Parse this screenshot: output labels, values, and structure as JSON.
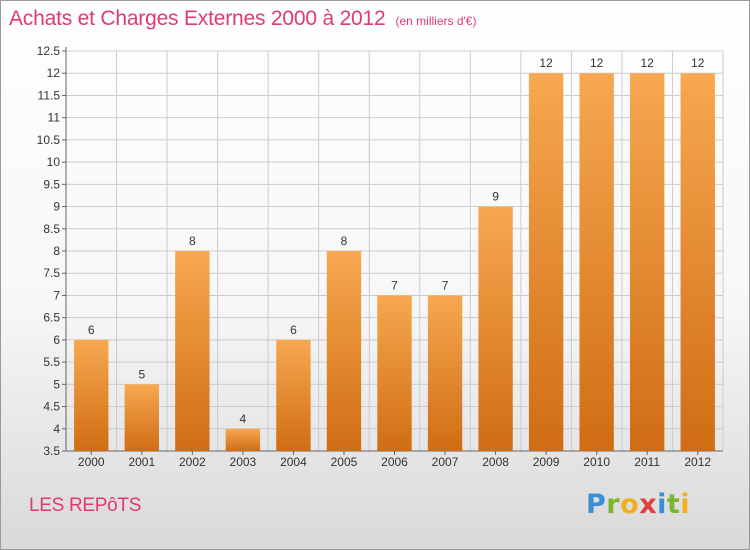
{
  "title": "Achats et Charges Externes 2000 à 2012",
  "unit_note": "(en milliers d'€)",
  "commune": "LES REPôTS",
  "brand": {
    "letters": [
      "P",
      "r",
      "o",
      "x",
      "i",
      "t",
      "i"
    ],
    "colors": [
      "#3a8fd6",
      "#7ab52f",
      "#f0b020",
      "#e0403a",
      "#3a8fd6",
      "#7ab52f",
      "#f0b020"
    ]
  },
  "colors": {
    "bar_light": "#f7a850",
    "bar_dark": "#d06d14",
    "title": "#e03a6e",
    "grid": "#cccccc"
  },
  "chart_data": {
    "type": "bar",
    "title": "Achats et Charges Externes 2000 à 2012",
    "subtitle": "(en milliers d'€)",
    "xlabel": "",
    "ylabel": "",
    "categories": [
      "2000",
      "2001",
      "2002",
      "2003",
      "2004",
      "2005",
      "2006",
      "2007",
      "2008",
      "2009",
      "2010",
      "2011",
      "2012"
    ],
    "values": [
      6,
      5,
      8,
      4,
      6,
      8,
      7,
      7,
      9,
      12,
      12,
      12,
      12
    ],
    "ylim": [
      3.5,
      12.5
    ],
    "yticks": [
      "3.5",
      "4",
      "4.5",
      "5",
      "5.5",
      "6",
      "6.5",
      "7",
      "7.5",
      "8",
      "8.5",
      "9",
      "9.5",
      "10",
      "10.5",
      "11",
      "11.5",
      "12",
      "12.5"
    ],
    "grid": true
  }
}
